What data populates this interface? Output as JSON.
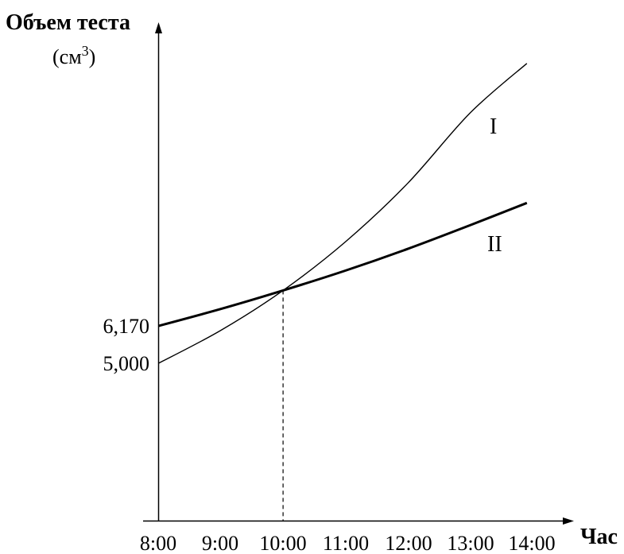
{
  "chart_data": {
    "type": "line",
    "ylabel": "Объем теста",
    "yunit_prefix": "(см",
    "yunit_sup": "3",
    "yunit_suffix": ")",
    "xlabel": "Час",
    "categories": [
      "8:00",
      "9:00",
      "10:00",
      "11:00",
      "12:00",
      "13:00",
      "14:00"
    ],
    "y_ticks": [
      "6,170",
      "5,000"
    ],
    "series": [
      {
        "name": "I",
        "x": [
          "8:00",
          "9:00",
          "10:00",
          "11:00",
          "12:00",
          "13:00",
          "13:55"
        ],
        "values": [
          5000,
          6030,
          7280,
          8800,
          10630,
          12830,
          14390
        ]
      },
      {
        "name": "II",
        "x": [
          "8:00",
          "9:00",
          "10:00",
          "11:00",
          "12:00",
          "13:00",
          "13:55"
        ],
        "values": [
          6170,
          6700,
          7280,
          7900,
          8580,
          9320,
          10020
        ]
      }
    ],
    "annotations": [
      {
        "type": "dashed-vertical",
        "x": "10:00",
        "y": 7280
      }
    ],
    "grid": false,
    "legend": "none"
  }
}
